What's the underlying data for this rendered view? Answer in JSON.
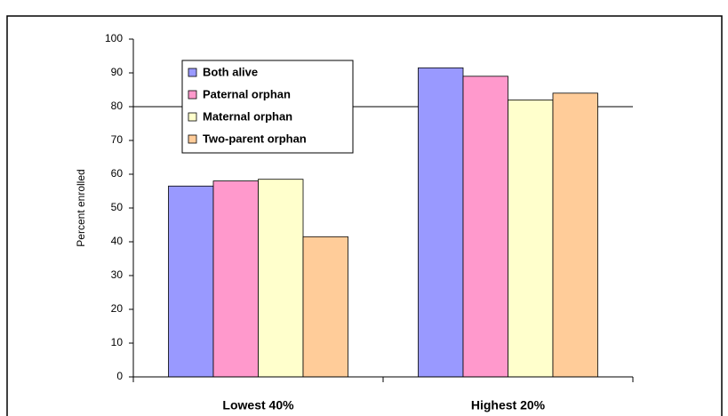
{
  "chart_data": {
    "type": "bar",
    "categories": [
      "Lowest 40%",
      "Highest 20%"
    ],
    "series": [
      {
        "name": "Both alive",
        "color": "#9999ff",
        "values": [
          56.5,
          91.5
        ]
      },
      {
        "name": "Paternal orphan",
        "color": "#ff99cc",
        "values": [
          58,
          89
        ]
      },
      {
        "name": "Maternal orphan",
        "color": "#ffffcc",
        "values": [
          58.5,
          82
        ]
      },
      {
        "name": "Two-parent orphan",
        "color": "#ffcc99",
        "values": [
          41.5,
          84
        ]
      }
    ],
    "ylabel": "Percent enrolled",
    "ylim": [
      0,
      100
    ],
    "yticks": [
      0,
      10,
      20,
      30,
      40,
      50,
      60,
      70,
      80,
      90,
      100
    ],
    "hline": 80,
    "legend": "upper left"
  }
}
